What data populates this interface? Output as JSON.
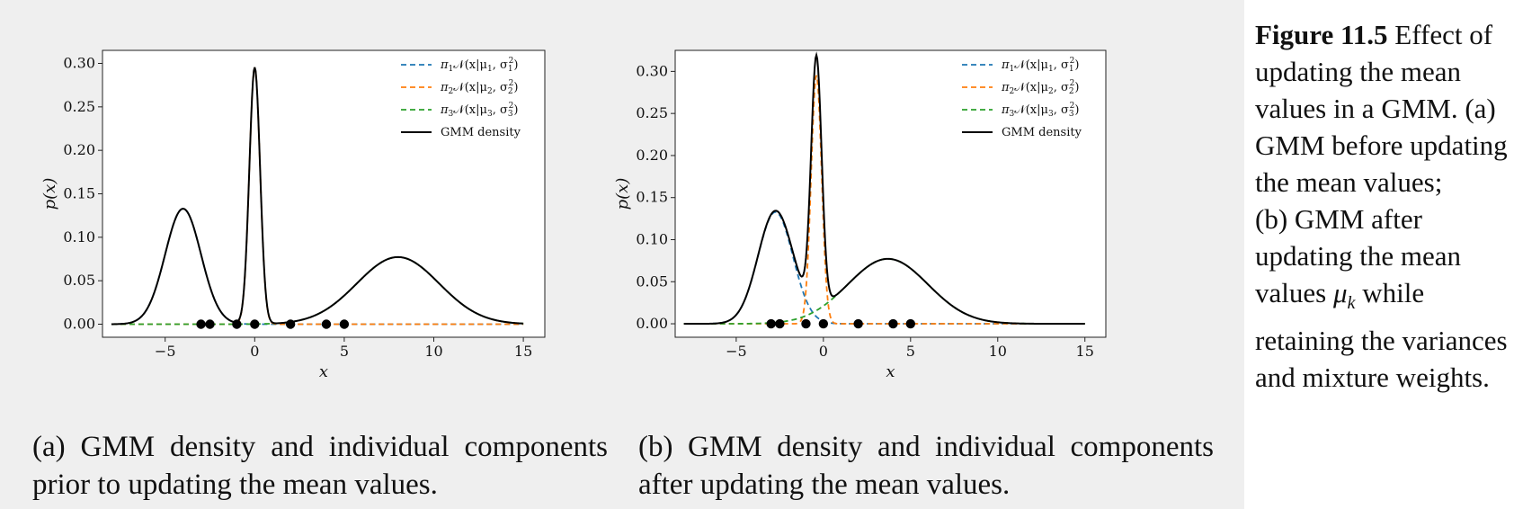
{
  "chart_data": [
    {
      "id": "a",
      "type": "line",
      "xlabel": "x",
      "ylabel": "p(x)",
      "xlim": [
        -8.5,
        16.2
      ],
      "ylim": [
        -0.015,
        0.315
      ],
      "xticks": [
        -5,
        0,
        5,
        10,
        15
      ],
      "xtick_labels": [
        "−5",
        "0",
        "5",
        "10",
        "15"
      ],
      "yticks": [
        0.0,
        0.05,
        0.1,
        0.15,
        0.2,
        0.25,
        0.3
      ],
      "ytick_labels": [
        "0.00",
        "0.05",
        "0.10",
        "0.15",
        "0.20",
        "0.25",
        "0.30"
      ],
      "x_range": [
        -8,
        15
      ],
      "components": [
        {
          "name": "pi1",
          "weight": 0.333,
          "mean": -4.0,
          "sd": 1.0,
          "color": "#1f77b4"
        },
        {
          "name": "pi2",
          "weight": 0.222,
          "mean": 0.0,
          "sd": 0.3,
          "color": "#ff7f0e"
        },
        {
          "name": "pi3",
          "weight": 0.445,
          "mean": 8.0,
          "sd": 2.3,
          "color": "#2ca02c"
        }
      ],
      "data_points": [
        -3,
        -2.5,
        -1,
        0,
        2,
        4,
        5
      ],
      "legend": {
        "position": "top-right",
        "entries": [
          {
            "sym": "π",
            "idx": "1",
            "text_a": "𝒩(x|μ",
            "text_b": ", σ",
            "text_c": ")",
            "color": "#1f77b4",
            "dash": true
          },
          {
            "sym": "π",
            "idx": "2",
            "text_a": "𝒩(x|μ",
            "text_b": ", σ",
            "text_c": ")",
            "color": "#ff7f0e",
            "dash": true
          },
          {
            "sym": "π",
            "idx": "3",
            "text_a": "𝒩(x|μ",
            "text_b": ", σ",
            "text_c": ")",
            "color": "#2ca02c",
            "dash": true
          },
          {
            "label": "GMM density",
            "color": "#000000",
            "dash": false
          }
        ]
      }
    },
    {
      "id": "b",
      "type": "line",
      "xlabel": "x",
      "ylabel": "p(x)",
      "xlim": [
        -8.5,
        16.2
      ],
      "ylim": [
        -0.016,
        0.325
      ],
      "xticks": [
        -5,
        0,
        5,
        10,
        15
      ],
      "xtick_labels": [
        "−5",
        "0",
        "5",
        "10",
        "15"
      ],
      "yticks": [
        0.0,
        0.05,
        0.1,
        0.15,
        0.2,
        0.25,
        0.3
      ],
      "ytick_labels": [
        "0.00",
        "0.05",
        "0.10",
        "0.15",
        "0.20",
        "0.25",
        "0.30"
      ],
      "x_range": [
        -8,
        15
      ],
      "components": [
        {
          "name": "pi1",
          "weight": 0.333,
          "mean": -2.75,
          "sd": 1.0,
          "color": "#1f77b4"
        },
        {
          "name": "pi2",
          "weight": 0.222,
          "mean": -0.4,
          "sd": 0.3,
          "color": "#ff7f0e"
        },
        {
          "name": "pi3",
          "weight": 0.445,
          "mean": 3.7,
          "sd": 2.3,
          "color": "#2ca02c"
        }
      ],
      "data_points": [
        -3,
        -2.5,
        -1,
        0,
        2,
        4,
        5
      ],
      "legend": {
        "position": "top-right",
        "entries": [
          {
            "sym": "π",
            "idx": "1",
            "text_a": "𝒩(x|μ",
            "text_b": ", σ",
            "text_c": ")",
            "color": "#1f77b4",
            "dash": true
          },
          {
            "sym": "π",
            "idx": "2",
            "text_a": "𝒩(x|μ",
            "text_b": ", σ",
            "text_c": ")",
            "color": "#ff7f0e",
            "dash": true
          },
          {
            "sym": "π",
            "idx": "3",
            "text_a": "𝒩(x|μ",
            "text_b": ", σ",
            "text_c": ")",
            "color": "#2ca02c",
            "dash": true
          },
          {
            "label": "GMM density",
            "color": "#000000",
            "dash": false
          }
        ]
      }
    }
  ],
  "captions": {
    "a": "(a) GMM density and individual components prior to updating the mean values.",
    "b": "(b) GMM density and individual components after updating the mean values."
  },
  "figure_caption": {
    "label": "Figure 11.5",
    "text_1": "Effect of updating the mean values in a GMM. (a) GMM before updating the mean values;",
    "text_2": "(b) GMM after updating the mean values",
    "mu": "μ",
    "mu_sub": "k",
    "text_3": "while retaining the variances and mixture weights."
  }
}
